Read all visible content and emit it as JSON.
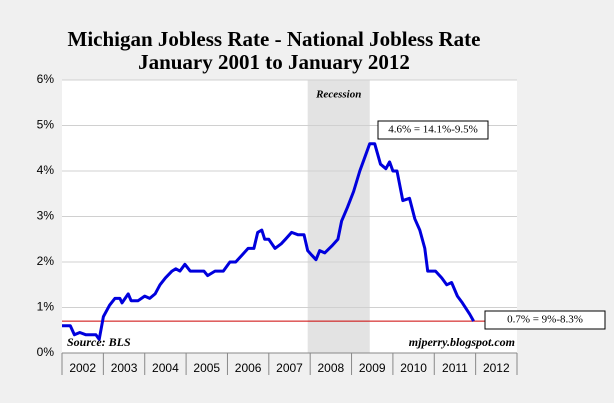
{
  "chart_data": {
    "type": "line",
    "title": "Michigan Jobless Rate - National Jobless Rate",
    "subtitle": "January 2001 to January 2012",
    "series": [
      {
        "name": "Michigan minus National jobless rate",
        "color": "#0000dd",
        "x": [
          2002.0,
          2002.2,
          2002.3,
          2002.43,
          2002.58,
          2002.82,
          2002.9,
          2003.0,
          2003.15,
          2003.28,
          2003.4,
          2003.45,
          2003.6,
          2003.67,
          2003.84,
          2004.0,
          2004.12,
          2004.25,
          2004.37,
          2004.5,
          2004.66,
          2004.75,
          2004.85,
          2004.97,
          2005.1,
          2005.24,
          2005.43,
          2005.52,
          2005.7,
          2005.9,
          2006.06,
          2006.2,
          2006.35,
          2006.5,
          2006.64,
          2006.73,
          2006.83,
          2006.9,
          2007.0,
          2007.15,
          2007.3,
          2007.4,
          2007.55,
          2007.7,
          2007.85,
          2007.94,
          2008.04,
          2008.14,
          2008.23,
          2008.35,
          2008.52,
          2008.67,
          2008.76,
          2008.9,
          2009.05,
          2009.2,
          2009.32,
          2009.44,
          2009.56,
          2009.7,
          2009.83,
          2009.92,
          2010.0,
          2010.1,
          2010.24,
          2010.4,
          2010.53,
          2010.65,
          2010.77,
          2010.84,
          2011.03,
          2011.18,
          2011.3,
          2011.42,
          2011.56,
          2011.68,
          2011.86,
          2011.95
        ],
        "values": [
          0.6,
          0.6,
          0.4,
          0.45,
          0.4,
          0.4,
          0.3,
          0.8,
          1.05,
          1.2,
          1.2,
          1.1,
          1.3,
          1.15,
          1.15,
          1.25,
          1.2,
          1.3,
          1.5,
          1.65,
          1.8,
          1.85,
          1.8,
          1.95,
          1.8,
          1.8,
          1.8,
          1.7,
          1.8,
          1.8,
          2.0,
          2.0,
          2.15,
          2.3,
          2.3,
          2.65,
          2.7,
          2.5,
          2.5,
          2.3,
          2.4,
          2.5,
          2.65,
          2.6,
          2.6,
          2.25,
          2.15,
          2.05,
          2.25,
          2.2,
          2.35,
          2.5,
          2.9,
          3.2,
          3.55,
          4.0,
          4.3,
          4.6,
          4.6,
          4.15,
          4.05,
          4.2,
          4.0,
          4.0,
          3.35,
          3.4,
          2.95,
          2.7,
          2.3,
          1.8,
          1.8,
          1.65,
          1.5,
          1.55,
          1.25,
          1.1,
          0.85,
          0.7
        ]
      }
    ],
    "xlim": [
      2002,
      2013
    ],
    "xticks": [
      2002,
      2003,
      2004,
      2005,
      2006,
      2007,
      2008,
      2009,
      2010,
      2011,
      2012
    ],
    "ylim": [
      0,
      6
    ],
    "yticks": [
      {
        "value": 0,
        "label": "0%"
      },
      {
        "value": 1,
        "label": "1%"
      },
      {
        "value": 2,
        "label": "2%"
      },
      {
        "value": 3,
        "label": "3%"
      },
      {
        "value": 4,
        "label": "4%"
      },
      {
        "value": 5,
        "label": "5%"
      },
      {
        "value": 6,
        "label": "6%"
      }
    ],
    "grid": true,
    "shaded_regions": [
      {
        "label": "Recession",
        "start": 2007.94,
        "end": 2009.44
      }
    ],
    "reference_line": {
      "value": 0.7,
      "color": "#cc0000"
    },
    "annotations": [
      "4.6% = 14.1%-9.5%",
      "0.7% = 9%-8.3%"
    ],
    "source": "Source: BLS",
    "credit": "mjperry.blogspot.com"
  }
}
